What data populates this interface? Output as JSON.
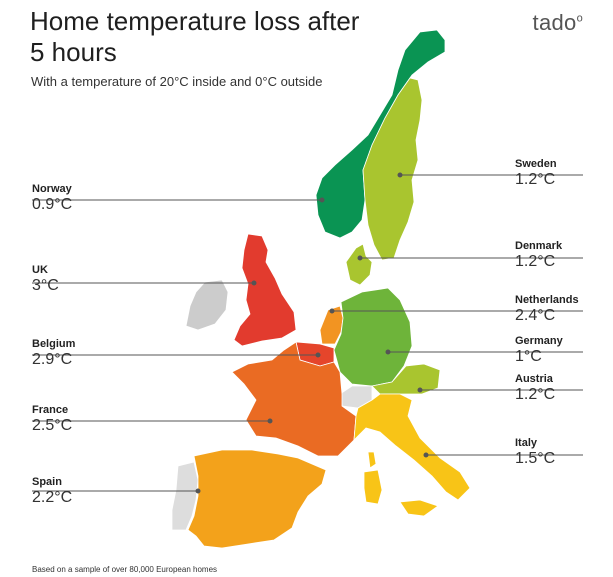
{
  "title": "Home temperature loss after 5 hours",
  "subtitle": "With a temperature of 20°C inside and 0°C outside",
  "brand": "tado",
  "footnote": "Based on a sample of over 80,000 European homes",
  "colors": {
    "norway": "#0a9453",
    "sweden": "#a9c52f",
    "denmark": "#a9c52f",
    "uk": "#e23b2e",
    "ireland": "#cccccc",
    "netherlands": "#f29422",
    "belgium": "#e5452b",
    "germany": "#6eb43a",
    "austria": "#a9c52f",
    "france": "#ea6b23",
    "spain": "#f3a21b",
    "italy": "#f8c417",
    "switzerland": "#dddddd",
    "portugal": "#dddddd",
    "leader": "#555555"
  },
  "countries": [
    {
      "name": "Norway",
      "value": "0.9°C"
    },
    {
      "name": "UK",
      "value": "3°C"
    },
    {
      "name": "Belgium",
      "value": "2.9°C"
    },
    {
      "name": "France",
      "value": "2.5°C"
    },
    {
      "name": "Spain",
      "value": "2.2°C"
    },
    {
      "name": "Sweden",
      "value": "1.2°C"
    },
    {
      "name": "Denmark",
      "value": "1.2°C"
    },
    {
      "name": "Netherlands",
      "value": "2.4°C"
    },
    {
      "name": "Germany",
      "value": "1°C"
    },
    {
      "name": "Austria",
      "value": "1.2°C"
    },
    {
      "name": "Italy",
      "value": "1.5°C"
    }
  ]
}
